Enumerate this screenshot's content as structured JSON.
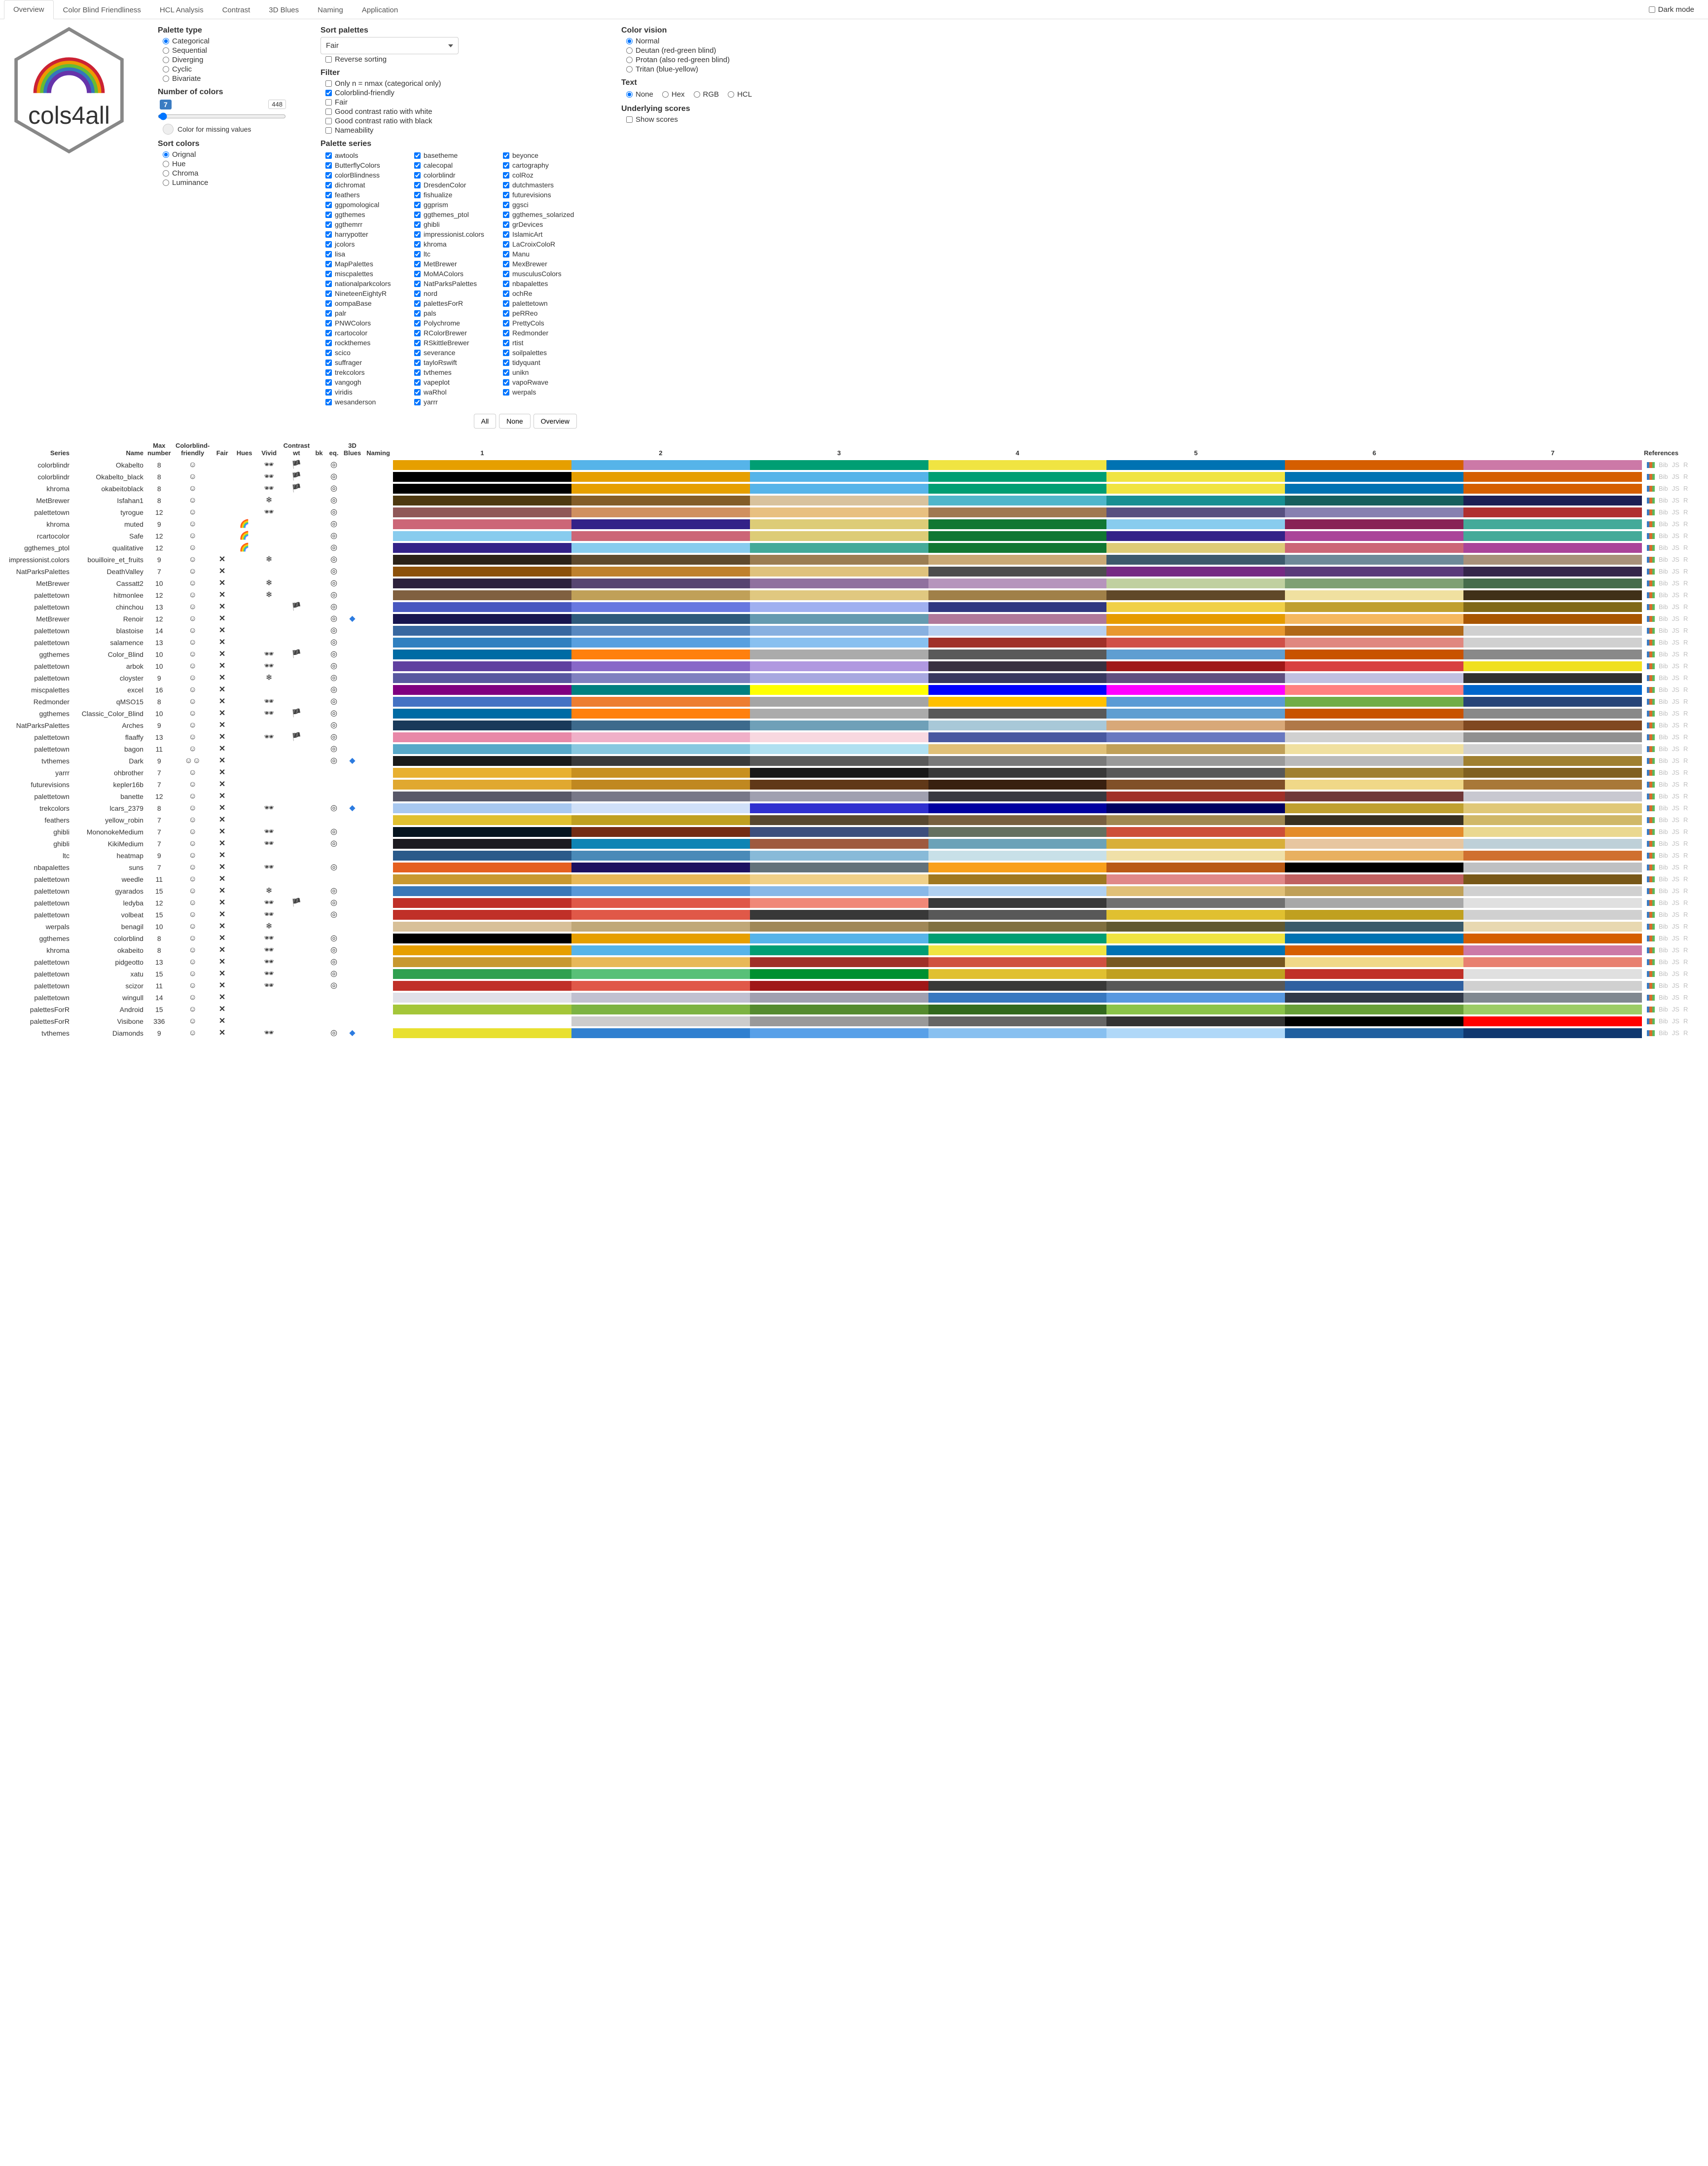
{
  "tabs": [
    "Overview",
    "Color Blind Friendliness",
    "HCL Analysis",
    "Contrast",
    "3D Blues",
    "Naming",
    "Application"
  ],
  "active_tab": 0,
  "darkmode_label": "Dark mode",
  "palette_type": {
    "title": "Palette type",
    "options": [
      "Categorical",
      "Sequential",
      "Diverging",
      "Cyclic",
      "Bivariate"
    ],
    "selected": 0
  },
  "num_colors": {
    "title": "Number of colors",
    "value": 7,
    "max_label": "448"
  },
  "missing_label": "Color for missing values",
  "sort_colors": {
    "title": "Sort colors",
    "options": [
      "Orignal",
      "Hue",
      "Chroma",
      "Luminance"
    ],
    "selected": 0
  },
  "sort_palettes": {
    "title": "Sort palettes",
    "value": "Fair",
    "reverse_label": "Reverse sorting"
  },
  "filter": {
    "title": "Filter",
    "items": [
      {
        "label": "Only n = nmax (categorical only)",
        "checked": false
      },
      {
        "label": "Colorblind-friendly",
        "checked": true
      },
      {
        "label": "Fair",
        "checked": false
      },
      {
        "label": "Good contrast ratio with white",
        "checked": false
      },
      {
        "label": "Good contrast ratio with black",
        "checked": false
      },
      {
        "label": "Nameability",
        "checked": false
      }
    ]
  },
  "palette_series": {
    "title": "Palette series",
    "items": [
      "awtools",
      "basetheme",
      "beyonce",
      "ButterflyColors",
      "calecopal",
      "cartography",
      "colorBlindness",
      "colorblindr",
      "colRoz",
      "dichromat",
      "DresdenColor",
      "dutchmasters",
      "feathers",
      "fishualize",
      "futurevisions",
      "ggpomological",
      "ggprism",
      "ggsci",
      "ggthemes",
      "ggthemes_ptol",
      "ggthemes_solarized",
      "ggthemrr",
      "ghibli",
      "grDevices",
      "harrypotter",
      "impressionist.colors",
      "IslamicArt",
      "jcolors",
      "khroma",
      "LaCroixColoR",
      "lisa",
      "ltc",
      "Manu",
      "MapPalettes",
      "MetBrewer",
      "MexBrewer",
      "miscpalettes",
      "MoMAColors",
      "musculusColors",
      "nationalparkcolors",
      "NatParksPalettes",
      "nbapalettes",
      "NineteenEightyR",
      "nord",
      "ochRe",
      "oompaBase",
      "palettesForR",
      "palettetown",
      "palr",
      "pals",
      "peRReo",
      "PNWColors",
      "Polychrome",
      "PrettyCols",
      "rcartocolor",
      "RColorBrewer",
      "Redmonder",
      "rockthemes",
      "RSkittleBrewer",
      "rtist",
      "scico",
      "severance",
      "soilpalettes",
      "suffrager",
      "tayloRswift",
      "tidyquant",
      "trekcolors",
      "tvthemes",
      "unikn",
      "vangogh",
      "vapeplot",
      "vapoRwave",
      "viridis",
      "waRhol",
      "werpals",
      "wesanderson",
      "yarrr"
    ]
  },
  "series_buttons": [
    "All",
    "None",
    "Overview"
  ],
  "color_vision": {
    "title": "Color vision",
    "options": [
      "Normal",
      "Deutan (red-green blind)",
      "Protan (also red-green blind)",
      "Tritan (blue-yellow)"
    ],
    "selected": 0
  },
  "text_mode": {
    "title": "Text",
    "options": [
      "None",
      "Hex",
      "RGB",
      "HCL"
    ],
    "selected": 0
  },
  "underlying": {
    "title": "Underlying scores",
    "label": "Show scores"
  },
  "headers": {
    "series": "Series",
    "name": "Name",
    "max": "Max\nnumber",
    "cb": "Colorblind-\nfriendly",
    "fair": "Fair",
    "hues": "Hues",
    "vivid": "Vivid",
    "cw": "Contrast\nwt",
    "cbk": "bk",
    "eq": "eq.",
    "blues": "3D\nBlues",
    "naming": "Naming",
    "refs": "References"
  },
  "smiley": "☺",
  "smiley2": "☺☺",
  "cross": "✕",
  "shades": "🕶",
  "flag": "🏴",
  "spiral": "◎",
  "rainbow": "🌈",
  "snow": "❄",
  "diamond": "◆",
  "ref_links": [
    "Bib",
    "JS",
    "R"
  ],
  "ref_pal": [
    "#3a7cc2",
    "#d96d2b",
    "#5cb85c"
  ],
  "rows": [
    {
      "series": "colorblindr",
      "name": "Okabelto",
      "max": 8,
      "cb": "s",
      "vivid": "sh",
      "cw": "fl",
      "eq": "sp",
      "colors": [
        "#e69f00",
        "#56b4e9",
        "#009e73",
        "#f0e442",
        "#0072b2",
        "#d55e00",
        "#cc79a7"
      ]
    },
    {
      "series": "colorblindr",
      "name": "Okabelto_black",
      "max": 8,
      "cb": "s",
      "vivid": "sh",
      "cw": "fl",
      "eq": "sp",
      "colors": [
        "#000000",
        "#e69f00",
        "#56b4e9",
        "#009e73",
        "#f0e442",
        "#0072b2",
        "#d55e00"
      ]
    },
    {
      "series": "khroma",
      "name": "okabeitoblack",
      "max": 8,
      "cb": "s",
      "vivid": "sh",
      "cw": "fl",
      "eq": "sp",
      "colors": [
        "#000000",
        "#e69f00",
        "#56b4e9",
        "#009e73",
        "#f0e442",
        "#0072b2",
        "#d55e00"
      ]
    },
    {
      "series": "MetBrewer",
      "name": "Isfahan1",
      "max": 8,
      "cb": "s",
      "vivid": "sn",
      "eq": "sp",
      "colors": [
        "#4e3910",
        "#845d29",
        "#d8c29d",
        "#4fb6ca",
        "#178f92",
        "#175f5d",
        "#1d1f54"
      ]
    },
    {
      "series": "palettetown",
      "name": "tyrogue",
      "max": 12,
      "cb": "s",
      "vivid": "sh",
      "eq": "sp",
      "colors": [
        "#905858",
        "#d09060",
        "#e8c080",
        "#a07850",
        "#585080",
        "#8880b0",
        "#b03030"
      ]
    },
    {
      "series": "khroma",
      "name": "muted",
      "max": 9,
      "cb": "s",
      "hues": "rb",
      "eq": "sp",
      "colors": [
        "#cc6677",
        "#332288",
        "#ddcc77",
        "#117733",
        "#88ccee",
        "#882255",
        "#44aa99"
      ]
    },
    {
      "series": "rcartocolor",
      "name": "Safe",
      "max": 12,
      "cb": "s",
      "hues": "rb",
      "eq": "sp",
      "colors": [
        "#88ccee",
        "#cc6677",
        "#ddcc77",
        "#117733",
        "#332288",
        "#aa4499",
        "#44aa99"
      ]
    },
    {
      "series": "ggthemes_ptol",
      "name": "qualitative",
      "max": 12,
      "cb": "s",
      "hues": "rb",
      "eq": "sp",
      "colors": [
        "#332288",
        "#88ccee",
        "#44aa99",
        "#117733",
        "#ddcc77",
        "#cc6677",
        "#aa4499"
      ]
    },
    {
      "series": "impressionist.colors",
      "name": "bouilloire_et_fruits",
      "max": 9,
      "cb": "s",
      "fair": "x",
      "vivid": "sn",
      "eq": "sp",
      "colors": [
        "#2b2218",
        "#5f4a2e",
        "#9b7d52",
        "#c9a976",
        "#3d5a6c",
        "#6e8a99",
        "#a8917a"
      ]
    },
    {
      "series": "NatParksPalettes",
      "name": "DeathValley",
      "max": 7,
      "cb": "s",
      "fair": "x",
      "eq": "sp",
      "colors": [
        "#8c510a",
        "#bf812d",
        "#dfc27d",
        "#4d4d4d",
        "#762a83",
        "#5a3a7a",
        "#35264a"
      ]
    },
    {
      "series": "MetBrewer",
      "name": "Cassatt2",
      "max": 10,
      "cb": "s",
      "fair": "x",
      "vivid": "sn",
      "eq": "sp",
      "colors": [
        "#2d223c",
        "#574571",
        "#90719f",
        "#b695bc",
        "#c0d0a0",
        "#7fa074",
        "#466c4b"
      ]
    },
    {
      "series": "palettetown",
      "name": "hitmonlee",
      "max": 12,
      "cb": "s",
      "fair": "x",
      "vivid": "sn",
      "eq": "sp",
      "colors": [
        "#806040",
        "#c0a058",
        "#e0c880",
        "#a08048",
        "#604828",
        "#f0e0a0",
        "#403018"
      ]
    },
    {
      "series": "palettetown",
      "name": "chinchou",
      "max": 13,
      "cb": "s",
      "fair": "x",
      "cw": "fl",
      "eq": "sp",
      "colors": [
        "#4858c0",
        "#6878e0",
        "#a0b0f0",
        "#303880",
        "#f0d048",
        "#c0a030",
        "#806818"
      ]
    },
    {
      "series": "MetBrewer",
      "name": "Renoir",
      "max": 12,
      "cb": "s",
      "fair": "x",
      "eq": "sp",
      "blues": "d",
      "colors": [
        "#17154f",
        "#2e5a7c",
        "#659ab0",
        "#b0799a",
        "#e69b00",
        "#f5b85f",
        "#a85500"
      ]
    },
    {
      "series": "palettetown",
      "name": "blastoise",
      "max": 14,
      "cb": "s",
      "fair": "x",
      "eq": "sp",
      "colors": [
        "#3868a0",
        "#5888c0",
        "#88b0e0",
        "#b8d0f0",
        "#e89830",
        "#b06818",
        "#d0d0d0"
      ]
    },
    {
      "series": "palettetown",
      "name": "salamence",
      "max": 13,
      "cb": "s",
      "fair": "x",
      "eq": "sp",
      "colors": [
        "#3080c0",
        "#58a0e0",
        "#88c0f0",
        "#a03028",
        "#d05048",
        "#e08880",
        "#d0d0d0"
      ]
    },
    {
      "series": "ggthemes",
      "name": "Color_Blind",
      "max": 10,
      "cb": "s",
      "fair": "x",
      "vivid": "sh",
      "cw": "fl",
      "eq": "sp",
      "colors": [
        "#006ba4",
        "#ff800e",
        "#ababab",
        "#595959",
        "#5f9ed1",
        "#c85200",
        "#898989"
      ]
    },
    {
      "series": "palettetown",
      "name": "arbok",
      "max": 10,
      "cb": "s",
      "fair": "x",
      "vivid": "sh",
      "eq": "sp",
      "colors": [
        "#6040a0",
        "#8868c8",
        "#b098e0",
        "#383040",
        "#a01818",
        "#d84040",
        "#f0e020"
      ]
    },
    {
      "series": "palettetown",
      "name": "cloyster",
      "max": 9,
      "cb": "s",
      "fair": "x",
      "vivid": "sn",
      "eq": "sp",
      "colors": [
        "#5858a0",
        "#8080c0",
        "#a8a8e0",
        "#383860",
        "#605080",
        "#c0c0e0",
        "#303030"
      ]
    },
    {
      "series": "miscpalettes",
      "name": "excel",
      "max": 16,
      "cb": "s",
      "fair": "x",
      "eq": "sp",
      "colors": [
        "#800080",
        "#008080",
        "#ffff00",
        "#0000ff",
        "#ff00ff",
        "#ff8080",
        "#0066cc"
      ]
    },
    {
      "series": "Redmonder",
      "name": "qMSO15",
      "max": 8,
      "cb": "s",
      "fair": "x",
      "vivid": "sh",
      "eq": "sp",
      "colors": [
        "#4472c4",
        "#ed7d31",
        "#a5a5a5",
        "#ffc000",
        "#5b9bd5",
        "#70ad47",
        "#264478"
      ]
    },
    {
      "series": "ggthemes",
      "name": "Classic_Color_Blind",
      "max": 10,
      "cb": "s",
      "fair": "x",
      "vivid": "sh",
      "cw": "fl",
      "eq": "sp",
      "colors": [
        "#006ba4",
        "#ff800e",
        "#ababab",
        "#595959",
        "#5f9ed1",
        "#c85200",
        "#898989"
      ]
    },
    {
      "series": "NatParksPalettes",
      "name": "Arches",
      "max": 9,
      "cb": "s",
      "fair": "x",
      "eq": "sp",
      "colors": [
        "#1a3a5a",
        "#3d6a8c",
        "#6fa0b8",
        "#a8c8d8",
        "#d8a878",
        "#b07848",
        "#804820"
      ]
    },
    {
      "series": "palettetown",
      "name": "flaaffy",
      "max": 13,
      "cb": "s",
      "fair": "x",
      "vivid": "sh",
      "cw": "fl",
      "eq": "sp",
      "colors": [
        "#e888a8",
        "#f0b0c8",
        "#f8d8e0",
        "#4858a0",
        "#6878c0",
        "#d0d0d0",
        "#909090"
      ]
    },
    {
      "series": "palettetown",
      "name": "bagon",
      "max": 11,
      "cb": "s",
      "fair": "x",
      "eq": "sp",
      "colors": [
        "#58a8c8",
        "#88c8e0",
        "#b0e0f0",
        "#e0c078",
        "#c0a058",
        "#f0e0a0",
        "#d0d0d0"
      ]
    },
    {
      "series": "tvthemes",
      "name": "Dark",
      "max": 9,
      "cb": "s2",
      "fair": "x",
      "eq": "sp",
      "blues": "d",
      "colors": [
        "#1a1a1a",
        "#3a3a3a",
        "#5a5a5a",
        "#7a7a7a",
        "#9a9a9a",
        "#bababa",
        "#a08030"
      ]
    },
    {
      "series": "yarrr",
      "name": "ohbrother",
      "max": 7,
      "cb": "s",
      "fair": "x",
      "colors": [
        "#e8b030",
        "#c89020",
        "#181818",
        "#383838",
        "#585858",
        "#a08030",
        "#806020"
      ]
    },
    {
      "series": "futurevisions",
      "name": "kepler16b",
      "max": 7,
      "cb": "s",
      "fair": "x",
      "colors": [
        "#e0a830",
        "#c08820",
        "#603818",
        "#382010",
        "#805028",
        "#f0d888",
        "#a87838"
      ]
    },
    {
      "series": "palettetown",
      "name": "banette",
      "max": 12,
      "cb": "s",
      "fair": "x",
      "colors": [
        "#585868",
        "#787888",
        "#a0a0b0",
        "#383840",
        "#a03028",
        "#703838",
        "#c8c8d0"
      ]
    },
    {
      "series": "trekcolors",
      "name": "lcars_2379",
      "max": 8,
      "cb": "s",
      "fair": "x",
      "vivid": "sh",
      "eq": "sp",
      "blues": "d",
      "colors": [
        "#a8c8f0",
        "#d0e0f8",
        "#3030d0",
        "#0000a0",
        "#000060",
        "#c0a030",
        "#e0c878"
      ]
    },
    {
      "series": "feathers",
      "name": "yellow_robin",
      "max": 7,
      "cb": "s",
      "fair": "x",
      "colors": [
        "#e0c030",
        "#c0a020",
        "#584830",
        "#786040",
        "#a08850",
        "#383020",
        "#d0b868"
      ]
    },
    {
      "series": "ghibli",
      "name": "MononokeMedium",
      "max": 7,
      "cb": "s",
      "fair": "x",
      "vivid": "sh",
      "eq": "sp",
      "colors": [
        "#06141f",
        "#742c14",
        "#3d4f7d",
        "#657060",
        "#cd4f38",
        "#e48c2a",
        "#ead890"
      ]
    },
    {
      "series": "ghibli",
      "name": "KikiMedium",
      "max": 7,
      "cb": "s",
      "fair": "x",
      "vivid": "sh",
      "eq": "sp",
      "colors": [
        "#1c1a1f",
        "#0e84b4",
        "#9f5a3f",
        "#6ca2b8",
        "#d8af39",
        "#e7c6a0",
        "#bed0d8"
      ]
    },
    {
      "series": "ltc",
      "name": "heatmap",
      "max": 9,
      "cb": "s",
      "fair": "x",
      "colors": [
        "#2a5a8a",
        "#4a8ab8",
        "#88bad8",
        "#c8e0e8",
        "#f0e0a8",
        "#e8b060",
        "#d07030"
      ]
    },
    {
      "series": "nbapalettes",
      "name": "suns",
      "max": 7,
      "cb": "s",
      "fair": "x",
      "vivid": "sh",
      "eq": "sp",
      "colors": [
        "#e56020",
        "#1d1160",
        "#63727a",
        "#f9a01b",
        "#b95915",
        "#000000",
        "#bec0c2"
      ]
    },
    {
      "series": "palettetown",
      "name": "weedle",
      "max": 11,
      "cb": "s",
      "fair": "x",
      "colors": [
        "#c89830",
        "#e8b858",
        "#f0d088",
        "#a07820",
        "#e08888",
        "#c06060",
        "#785818"
      ]
    },
    {
      "series": "palettetown",
      "name": "gyarados",
      "max": 15,
      "cb": "s",
      "fair": "x",
      "vivid": "sn",
      "eq": "sp",
      "colors": [
        "#3878b8",
        "#5898d8",
        "#88b8e8",
        "#b0d0f0",
        "#e0c078",
        "#c0a058",
        "#d0d0d0"
      ]
    },
    {
      "series": "palettetown",
      "name": "ledyba",
      "max": 12,
      "cb": "s",
      "fair": "x",
      "vivid": "sh",
      "cw": "fl",
      "eq": "sp",
      "colors": [
        "#c03028",
        "#e05848",
        "#f08878",
        "#383838",
        "#707070",
        "#a8a8a8",
        "#e0e0e0"
      ]
    },
    {
      "series": "palettetown",
      "name": "volbeat",
      "max": 15,
      "cb": "s",
      "fair": "x",
      "vivid": "sh",
      "eq": "sp",
      "colors": [
        "#c03028",
        "#e05848",
        "#383838",
        "#585858",
        "#e0c030",
        "#c0a020",
        "#d0d0d0"
      ]
    },
    {
      "series": "werpals",
      "name": "benagil",
      "max": 10,
      "cb": "s",
      "fair": "x",
      "vivid": "sn",
      "colors": [
        "#d8c098",
        "#c0a878",
        "#a08858",
        "#807040",
        "#605830",
        "#3a5a6a",
        "#e8d8b0"
      ]
    },
    {
      "series": "ggthemes",
      "name": "colorblind",
      "max": 8,
      "cb": "s",
      "fair": "x",
      "vivid": "sh",
      "eq": "sp",
      "colors": [
        "#000000",
        "#e69f00",
        "#56b4e9",
        "#009e73",
        "#f0e442",
        "#0072b2",
        "#d55e00"
      ]
    },
    {
      "series": "khroma",
      "name": "okabeito",
      "max": 8,
      "cb": "s",
      "fair": "x",
      "vivid": "sh",
      "eq": "sp",
      "colors": [
        "#e69f00",
        "#56b4e9",
        "#009e73",
        "#f0e442",
        "#0072b2",
        "#d55e00",
        "#cc79a7"
      ]
    },
    {
      "series": "palettetown",
      "name": "pidgeotto",
      "max": 13,
      "cb": "s",
      "fair": "x",
      "vivid": "sh",
      "eq": "sp",
      "colors": [
        "#c89830",
        "#e8b858",
        "#a03028",
        "#d05040",
        "#785820",
        "#f0d888",
        "#e88070"
      ]
    },
    {
      "series": "palettetown",
      "name": "xatu",
      "max": 15,
      "cb": "s",
      "fair": "x",
      "vivid": "sh",
      "eq": "sp",
      "colors": [
        "#30a050",
        "#58c078",
        "#009030",
        "#e0c030",
        "#c0a020",
        "#c03028",
        "#e0e0e0"
      ]
    },
    {
      "series": "palettetown",
      "name": "scizor",
      "max": 11,
      "cb": "s",
      "fair": "x",
      "vivid": "sh",
      "eq": "sp",
      "colors": [
        "#c03028",
        "#e05848",
        "#a01818",
        "#383838",
        "#585858",
        "#3060a0",
        "#d0d0d0"
      ]
    },
    {
      "series": "palettetown",
      "name": "wingull",
      "max": 14,
      "cb": "s",
      "fair": "x",
      "colors": [
        "#e0e0e8",
        "#c0c0d0",
        "#a0a0b0",
        "#3878c0",
        "#5898e0",
        "#303848",
        "#808890"
      ]
    },
    {
      "series": "palettesForR",
      "name": "Android",
      "max": 15,
      "cb": "s",
      "fair": "x",
      "colors": [
        "#a4c639",
        "#7cb342",
        "#558b2f",
        "#33691e",
        "#8bc34a",
        "#689f38",
        "#9ccc65"
      ]
    },
    {
      "series": "palettesForR",
      "name": "Visibone",
      "max": 336,
      "cb": "s",
      "fair": "x",
      "colors": [
        "#ffffff",
        "#cccccc",
        "#999999",
        "#666666",
        "#333333",
        "#000000",
        "#ff0000"
      ]
    },
    {
      "series": "tvthemes",
      "name": "Diamonds",
      "max": 9,
      "cb": "s",
      "fair": "x",
      "vivid": "sh",
      "eq": "sp",
      "blues": "d",
      "colors": [
        "#e8e030",
        "#3080d0",
        "#58a0e8",
        "#88c0f0",
        "#b0d8f8",
        "#2060a0",
        "#103870"
      ]
    }
  ]
}
